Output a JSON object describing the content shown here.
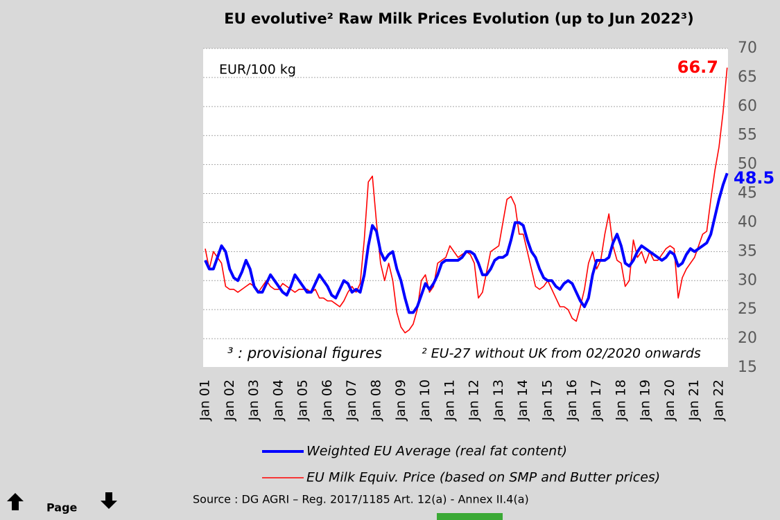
{
  "chart_data": {
    "type": "line",
    "title": "EU evolutive² Raw Milk Prices Evolution (up to Jun 2022³)",
    "y_label": "EUR/100 kg",
    "annotations": [
      "³ : provisional figures",
      "² EU-27 without UK from 02/2020 onwards"
    ],
    "source": "Source : DG AGRI – Reg. 2017/1185 Art. 12(a) - Annex II.4(a)",
    "categories": [
      "Jan 01",
      null,
      null,
      null,
      null,
      null,
      "Jan 02",
      null,
      null,
      null,
      null,
      null,
      "Jan 03",
      null,
      null,
      null,
      null,
      null,
      "Jan 04",
      null,
      null,
      null,
      null,
      null,
      "Jan 05",
      null,
      null,
      null,
      null,
      null,
      "Jan 06",
      null,
      null,
      null,
      null,
      null,
      "Jan 07",
      null,
      null,
      null,
      null,
      null,
      "Jan 08",
      null,
      null,
      null,
      null,
      null,
      "Jan 09",
      null,
      null,
      null,
      null,
      null,
      "Jan 10",
      null,
      null,
      null,
      null,
      null,
      "Jan 11",
      null,
      null,
      null,
      null,
      null,
      "Jan 12",
      null,
      null,
      null,
      null,
      null,
      "Jan 13",
      null,
      null,
      null,
      null,
      null,
      "Jan 14",
      null,
      null,
      null,
      null,
      null,
      "Jan 15",
      null,
      null,
      null,
      null,
      null,
      "Jan 16",
      null,
      null,
      null,
      null,
      null,
      "Jan 17",
      null,
      null,
      null,
      null,
      null,
      "Jan 18",
      null,
      null,
      null,
      null,
      null,
      "Jan 19",
      null,
      null,
      null,
      null,
      null,
      "Jan 20",
      null,
      null,
      null,
      null,
      null,
      "Jan 21",
      null,
      null,
      null,
      null,
      null,
      "Jan 22",
      null,
      null
    ],
    "series": [
      {
        "name": "Weighted EU Average (real fat content)",
        "color": "#0000ff",
        "width": 4,
        "values": [
          33.5,
          32,
          32,
          34,
          36,
          35,
          32,
          30.5,
          30,
          31.5,
          33.5,
          32,
          29,
          28,
          28,
          29.5,
          31,
          30,
          29,
          28,
          27.5,
          29,
          31,
          30,
          29,
          28,
          28,
          29.5,
          31,
          30,
          29,
          27.5,
          27,
          28.5,
          30,
          29.5,
          28,
          28.5,
          28,
          31,
          36,
          39.5,
          38.5,
          35,
          33.5,
          34.5,
          35,
          32,
          30,
          27,
          24.5,
          24.5,
          25.5,
          27.5,
          29.5,
          28.5,
          29.5,
          31,
          33,
          33.5,
          33.5,
          33.5,
          33.5,
          34,
          35,
          35,
          34.5,
          33,
          31,
          31,
          32,
          33.5,
          34,
          34,
          34.5,
          37,
          40,
          40,
          39.5,
          37,
          35,
          34,
          32,
          30.5,
          30,
          30,
          29,
          28.5,
          29.5,
          30,
          29.5,
          28,
          26.5,
          25.5,
          27,
          31,
          33.5,
          33.5,
          33.5,
          34,
          36.5,
          38,
          36,
          33,
          32.5,
          33.5,
          35,
          36,
          35.5,
          35,
          34.5,
          34,
          33.5,
          34,
          35,
          34.5,
          32.5,
          33,
          34.5,
          35.5,
          35,
          35.5,
          36,
          36.5,
          38,
          41,
          44,
          46.5,
          48.5
        ]
      },
      {
        "name": "EU Milk Equiv. Price (based on SMP and Butter prices)",
        "color": "#ff0000",
        "width": 1.6,
        "values": [
          35.5,
          32,
          35,
          34,
          33,
          29,
          28.5,
          28.5,
          28,
          28.5,
          29,
          29.5,
          29,
          28,
          29,
          30,
          29,
          28.5,
          28.5,
          29.5,
          29,
          28.5,
          28,
          28.5,
          28.5,
          28.5,
          28,
          28.5,
          27,
          27,
          26.5,
          26.5,
          26,
          25.5,
          26.5,
          28,
          29,
          28,
          29.5,
          37,
          47,
          48,
          40,
          33,
          30,
          33,
          30,
          24.5,
          22,
          21,
          21.5,
          22.5,
          25,
          30,
          31,
          28,
          29,
          33,
          33.5,
          34,
          36,
          35,
          34,
          34.5,
          35,
          34.5,
          33,
          27,
          28,
          31.5,
          35,
          35.5,
          36,
          40,
          44,
          44.5,
          43,
          38,
          38,
          35,
          32,
          29,
          28.5,
          29,
          30,
          28.5,
          27,
          25.5,
          25.5,
          25,
          23.5,
          23,
          25.5,
          28.5,
          33,
          35,
          32,
          33.5,
          38,
          41.5,
          36,
          33.5,
          33,
          29,
          30,
          37,
          34,
          35,
          33,
          35,
          33.5,
          33.5,
          34.5,
          35.5,
          36,
          35.5,
          27,
          30.5,
          32,
          33,
          34,
          36,
          38,
          38.5,
          44,
          49,
          53,
          59,
          66.7
        ]
      }
    ],
    "ylim": [
      15,
      70
    ],
    "yticks": [
      15,
      20,
      25,
      30,
      35,
      40,
      45,
      50,
      55,
      60,
      65,
      70
    ],
    "grid": true
  },
  "page_nav": {
    "label": "Page"
  }
}
